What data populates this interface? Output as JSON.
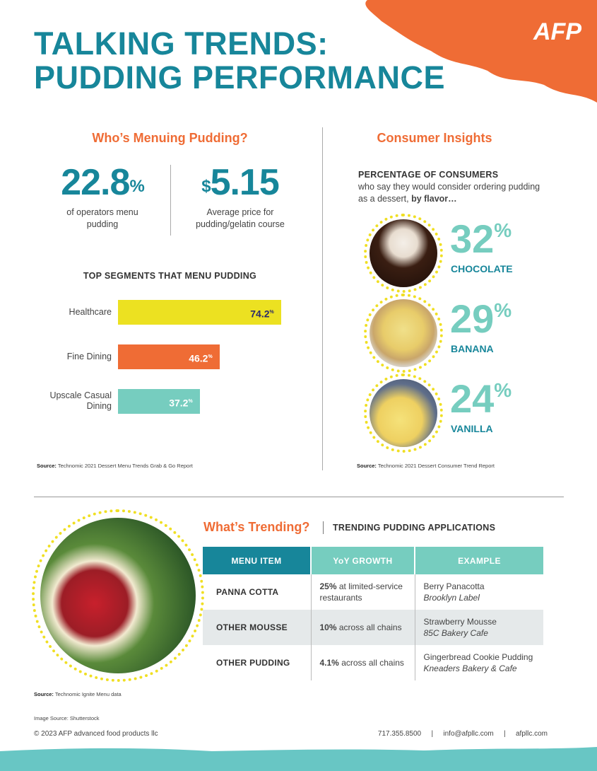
{
  "header": {
    "title_line1": "TALKING TRENDS:",
    "title_line2": "PUDDING PERFORMANCE",
    "logo": "AFP",
    "colors": {
      "teal": "#17869a",
      "orange": "#ef6c35",
      "mint": "#76cdbf",
      "yellow": "#ece121"
    }
  },
  "left": {
    "heading": "Who’s Menuing Pudding?",
    "stat1": {
      "value": "22.8",
      "unit": "%",
      "text": "of operators menu pudding"
    },
    "stat2": {
      "unit": "$",
      "value": "5.15",
      "text": "Average price for pudding/gelatin course"
    },
    "segments_title": "TOP SEGMENTS THAT MENU PUDDING",
    "source_label": "Source:",
    "source": "Technomic 2021 Dessert Menu Trends Grab & Go Report"
  },
  "chart_data": {
    "type": "bar",
    "orientation": "horizontal",
    "title": "TOP SEGMENTS THAT MENU PUDDING",
    "categories": [
      "Healthcare",
      "Fine Dining",
      "Upscale Casual Dining"
    ],
    "values": [
      74.2,
      46.2,
      37.2
    ],
    "labels": [
      "74.2",
      "46.2",
      "37.2"
    ],
    "unit": "%",
    "colors": [
      "#ece121",
      "#ef6c35",
      "#76cdbf"
    ],
    "label_colors": [
      "#2b2a6b",
      "#ffffff",
      "#ffffff"
    ]
  },
  "right": {
    "heading": "Consumer Insights",
    "intro_bold": "PERCENTAGE OF CONSUMERS",
    "intro_text": "who say they would consider ordering pudding as a dessert,",
    "intro_tail": "by flavor…",
    "flavors": [
      {
        "pct": "32",
        "unit": "%",
        "name": "CHOCOLATE"
      },
      {
        "pct": "29",
        "unit": "%",
        "name": "BANANA"
      },
      {
        "pct": "24",
        "unit": "%",
        "name": "VANILLA"
      }
    ],
    "source_label": "Source:",
    "source": "Technomic 2021 Dessert Consumer Trend Report"
  },
  "trending": {
    "heading": "What’s Trending?",
    "subheading": "TRENDING PUDDING APPLICATIONS",
    "columns": [
      "MENU ITEM",
      "YoY GROWTH",
      "EXAMPLE"
    ],
    "rows": [
      {
        "item": "PANNA COTTA",
        "growth_bold": "25%",
        "growth_text": "at limited-service restaurants",
        "example": "Berry Panacotta",
        "venue": "Brooklyn Label"
      },
      {
        "item": "OTHER MOUSSE",
        "growth_bold": "10%",
        "growth_text": "across all chains",
        "example": "Strawberry Mousse",
        "venue": "85C Bakery Cafe"
      },
      {
        "item": "OTHER PUDDING",
        "growth_bold": "4.1%",
        "growth_text": "across all chains",
        "example": "Gingerbread Cookie Pudding",
        "venue": "Kneaders Bakery & Cafe"
      }
    ],
    "source_label": "Source:",
    "source": "Technomic Ignite Menu data"
  },
  "footer": {
    "image_source": "Image Source: Shutterstock",
    "copyright": "© 2023 AFP advanced food products llc",
    "phone": "717.355.8500",
    "email": "info@afpllc.com",
    "website": "afpllc.com",
    "sep": "|"
  }
}
